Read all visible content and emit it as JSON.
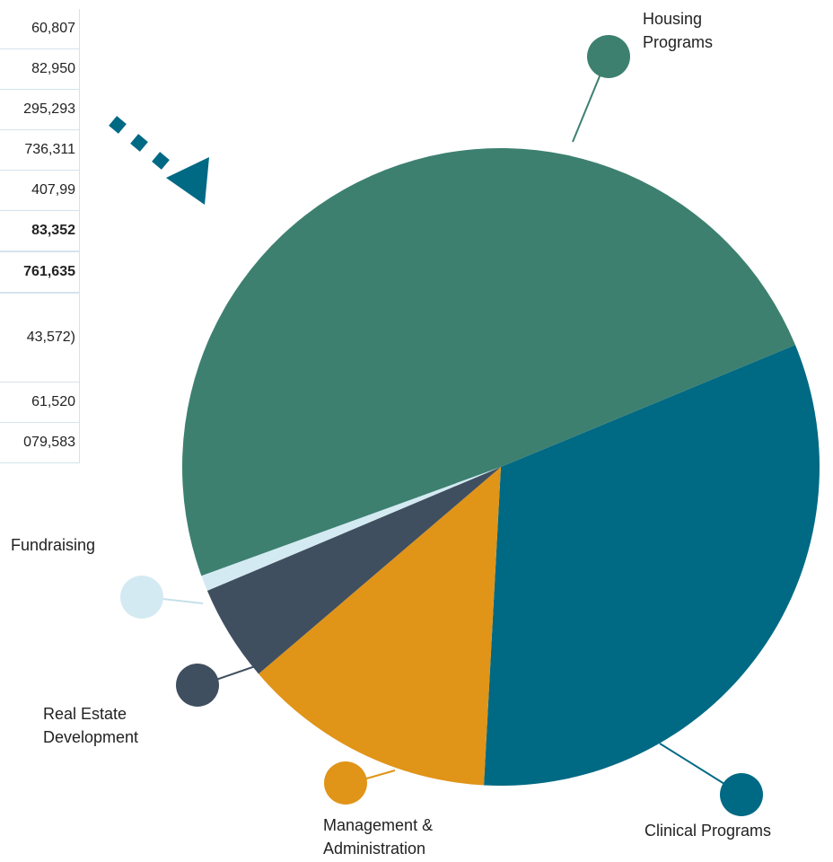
{
  "table": {
    "rows": [
      {
        "text": "60,807",
        "bold": false
      },
      {
        "text": "82,950",
        "bold": false
      },
      {
        "text": "295,293",
        "bold": false
      },
      {
        "text": "736,311",
        "bold": false
      },
      {
        "text": "407,99",
        "bold": false
      },
      {
        "text": "83,352",
        "bold": true
      },
      {
        "text": "761,635",
        "bold": true
      },
      {
        "text": "43,572)",
        "bold": false
      },
      {
        "text": "61,520",
        "bold": false
      },
      {
        "text": "079,583",
        "bold": false
      }
    ]
  },
  "chart_data": {
    "type": "pie",
    "categories": [
      "Clinical Programs",
      "Management & Administration",
      "Real Estate Development",
      "Fundraising",
      "Housing Programs"
    ],
    "values": [
      32.1,
      12.9,
      4.9,
      0.8,
      49.3
    ],
    "colors": [
      "#006984",
      "#e09418",
      "#404f5f",
      "#d4eaf3",
      "#3d8070"
    ]
  }
}
